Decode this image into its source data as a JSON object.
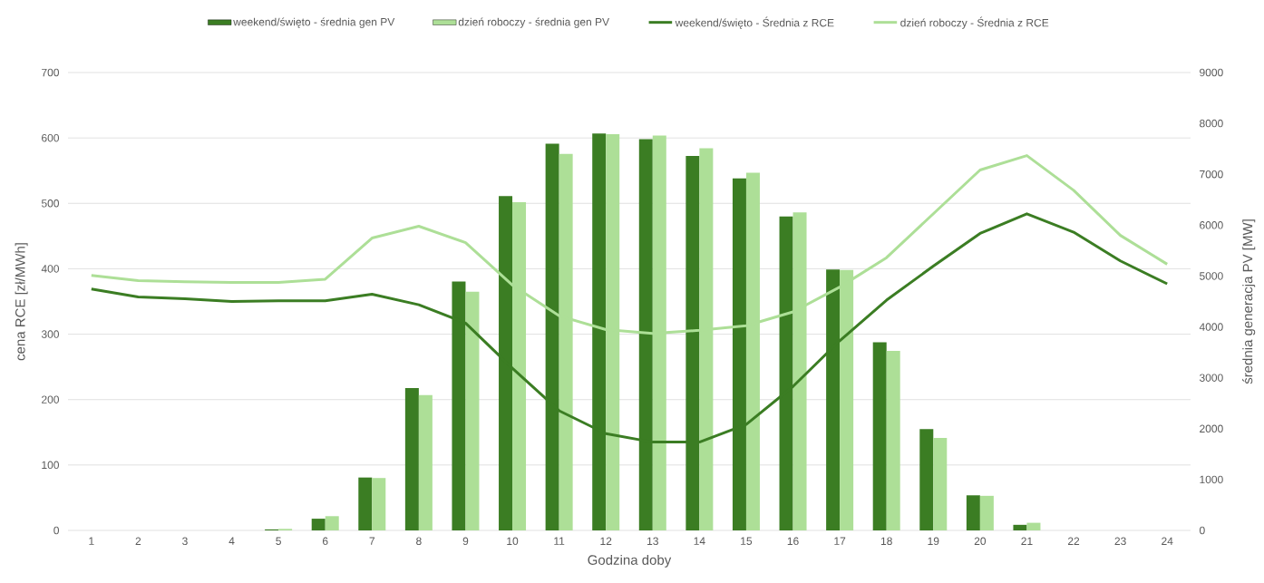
{
  "chart_data": {
    "type": "bar",
    "xlabel": "Godzina doby",
    "ylabel": "cena RCE [zł/MWh]",
    "y2label": "średnia generacja PV [MW]",
    "categories": [
      "1",
      "2",
      "3",
      "4",
      "5",
      "6",
      "7",
      "8",
      "9",
      "10",
      "11",
      "12",
      "13",
      "14",
      "15",
      "16",
      "17",
      "18",
      "19",
      "20",
      "21",
      "22",
      "23",
      "24"
    ],
    "ylim": [
      0,
      700
    ],
    "yticks": [
      0,
      100,
      200,
      300,
      400,
      500,
      600,
      700
    ],
    "y2lim": [
      0,
      9000
    ],
    "y2ticks": [
      0,
      1000,
      2000,
      3000,
      4000,
      5000,
      6000,
      7000,
      8000,
      9000
    ],
    "grid": "y",
    "legend": "top",
    "series": [
      {
        "name": "weekend/święto - średnia gen PV",
        "axis": "y2",
        "color": "#3b7d23",
        "values": [
          0,
          0,
          0,
          0,
          20,
          230,
          1040,
          2800,
          4890,
          6570,
          7600,
          7800,
          7690,
          7360,
          6920,
          6170,
          5130,
          3700,
          1990,
          690,
          110,
          0,
          0,
          0
        ]
      },
      {
        "name": "dzień roboczy - średnia gen PV",
        "axis": "y2",
        "color": "#addf97",
        "values": [
          0,
          0,
          0,
          0,
          30,
          280,
          1030,
          2660,
          4690,
          6450,
          7400,
          7790,
          7760,
          7510,
          7030,
          6250,
          5120,
          3530,
          1820,
          680,
          150,
          0,
          0,
          0
        ]
      },
      {
        "name": "weekend/święto - Średnia z RCE",
        "type": "line",
        "color": "#3b7d23",
        "values": [
          369,
          357,
          354,
          350,
          351,
          351,
          361,
          345,
          317,
          248,
          183,
          148,
          135,
          135,
          162,
          220,
          290,
          352,
          404,
          454,
          484,
          456,
          412,
          377
        ]
      },
      {
        "name": "dzień roboczy - Średnia z RCE",
        "type": "line",
        "color": "#addf97",
        "values": [
          390,
          382,
          380,
          379,
          379,
          384,
          447,
          465,
          440,
          375,
          328,
          307,
          301,
          306,
          313,
          334,
          372,
          417,
          484,
          551,
          573,
          520,
          451,
          407
        ]
      }
    ]
  }
}
